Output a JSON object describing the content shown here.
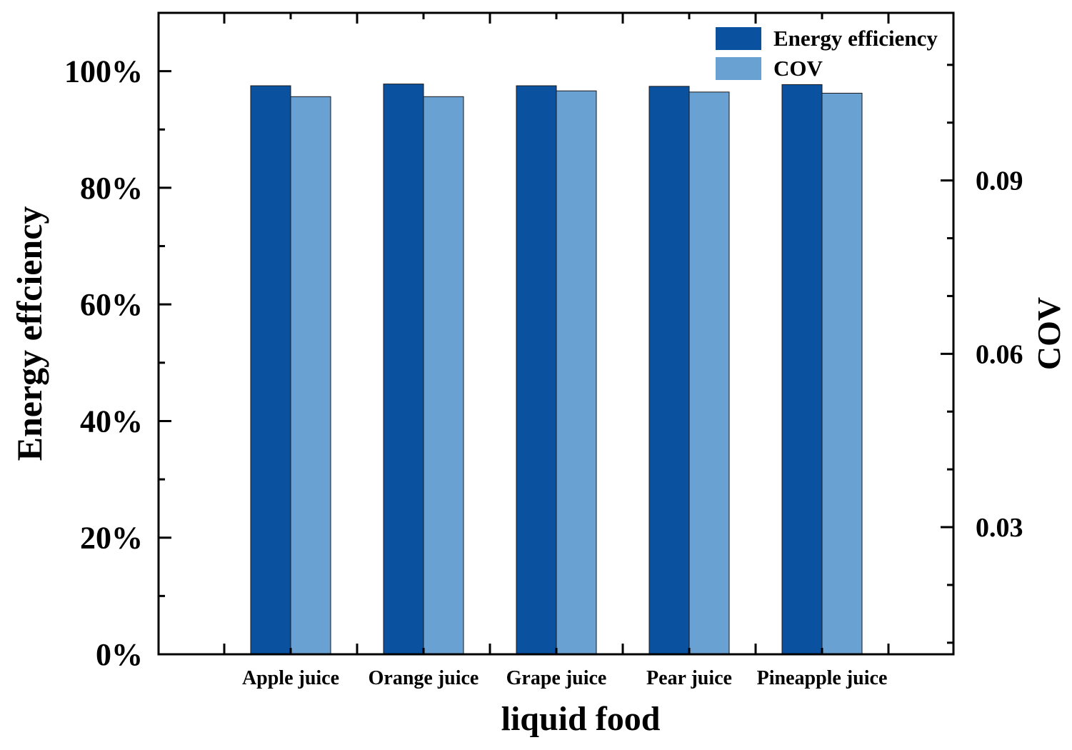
{
  "chart_data": {
    "type": "bar",
    "title": "",
    "xlabel": "liquid food",
    "ylabel_left": "Energy effciency",
    "ylabel_right": "COV",
    "categories": [
      "Apple juice",
      "Orange juice",
      "Grape juice",
      "Pear juice",
      "Pineapple juice"
    ],
    "series": [
      {
        "name": "Energy efficiency",
        "axis": "left",
        "color": "#0a51a0",
        "values": [
          0.975,
          0.978,
          0.975,
          0.974,
          0.977
        ]
      },
      {
        "name": "COV",
        "axis": "right",
        "color": "#69a1d2",
        "values": [
          0.1045,
          0.1045,
          0.1055,
          0.1053,
          0.1051
        ]
      }
    ],
    "ylim_left": [
      0,
      1.1
    ],
    "yticks_left": [
      0,
      0.2,
      0.4,
      0.6,
      0.8,
      1.0
    ],
    "yticklabels_left": [
      "0%",
      "20%",
      "40%",
      "60%",
      "80%",
      "100%"
    ],
    "ylim_right": [
      0.008,
      0.119
    ],
    "yticks_right": [
      0.03,
      0.06,
      0.09
    ],
    "yticklabels_right": [
      "0.03",
      "0.06",
      "0.09"
    ],
    "grid": false,
    "legend_position": "top-right"
  }
}
